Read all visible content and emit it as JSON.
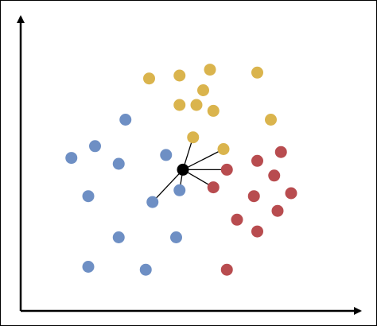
{
  "chart_data": {
    "type": "scatter",
    "title": "",
    "xlabel": "",
    "ylabel": "",
    "xlim": [
      0,
      100
    ],
    "ylim": [
      0,
      100
    ],
    "grid": false,
    "axes": {
      "arrows": true,
      "ticks": false
    },
    "series": [
      {
        "name": "blue",
        "color": "#6e8fc4",
        "points": [
          [
            31,
            65
          ],
          [
            22,
            56
          ],
          [
            15,
            52
          ],
          [
            29,
            50
          ],
          [
            43,
            53
          ],
          [
            20,
            39
          ],
          [
            39,
            37
          ],
          [
            47,
            41
          ],
          [
            29,
            25
          ],
          [
            46,
            25
          ],
          [
            20,
            15
          ],
          [
            37,
            14
          ]
        ]
      },
      {
        "name": "yellow",
        "color": "#dab44d",
        "points": [
          [
            56,
            82
          ],
          [
            38,
            79
          ],
          [
            47,
            80
          ],
          [
            54,
            75
          ],
          [
            70,
            81
          ],
          [
            47,
            70
          ],
          [
            52,
            70
          ],
          [
            57,
            68
          ],
          [
            74,
            65
          ],
          [
            51,
            59
          ],
          [
            60,
            55
          ]
        ]
      },
      {
        "name": "red",
        "color": "#b84c4f",
        "points": [
          [
            77,
            54
          ],
          [
            70,
            51
          ],
          [
            61,
            48
          ],
          [
            75,
            46
          ],
          [
            57,
            42
          ],
          [
            69,
            39
          ],
          [
            80,
            40
          ],
          [
            76,
            34
          ],
          [
            64,
            31
          ],
          [
            70,
            27
          ],
          [
            61,
            14
          ]
        ]
      }
    ],
    "query_point": {
      "x": 48,
      "y": 48,
      "color": "#000000"
    },
    "neighbor_links": [
      [
        51,
        59
      ],
      [
        60,
        55
      ],
      [
        61,
        48
      ],
      [
        57,
        42
      ],
      [
        47,
        41
      ],
      [
        39,
        37
      ]
    ]
  }
}
